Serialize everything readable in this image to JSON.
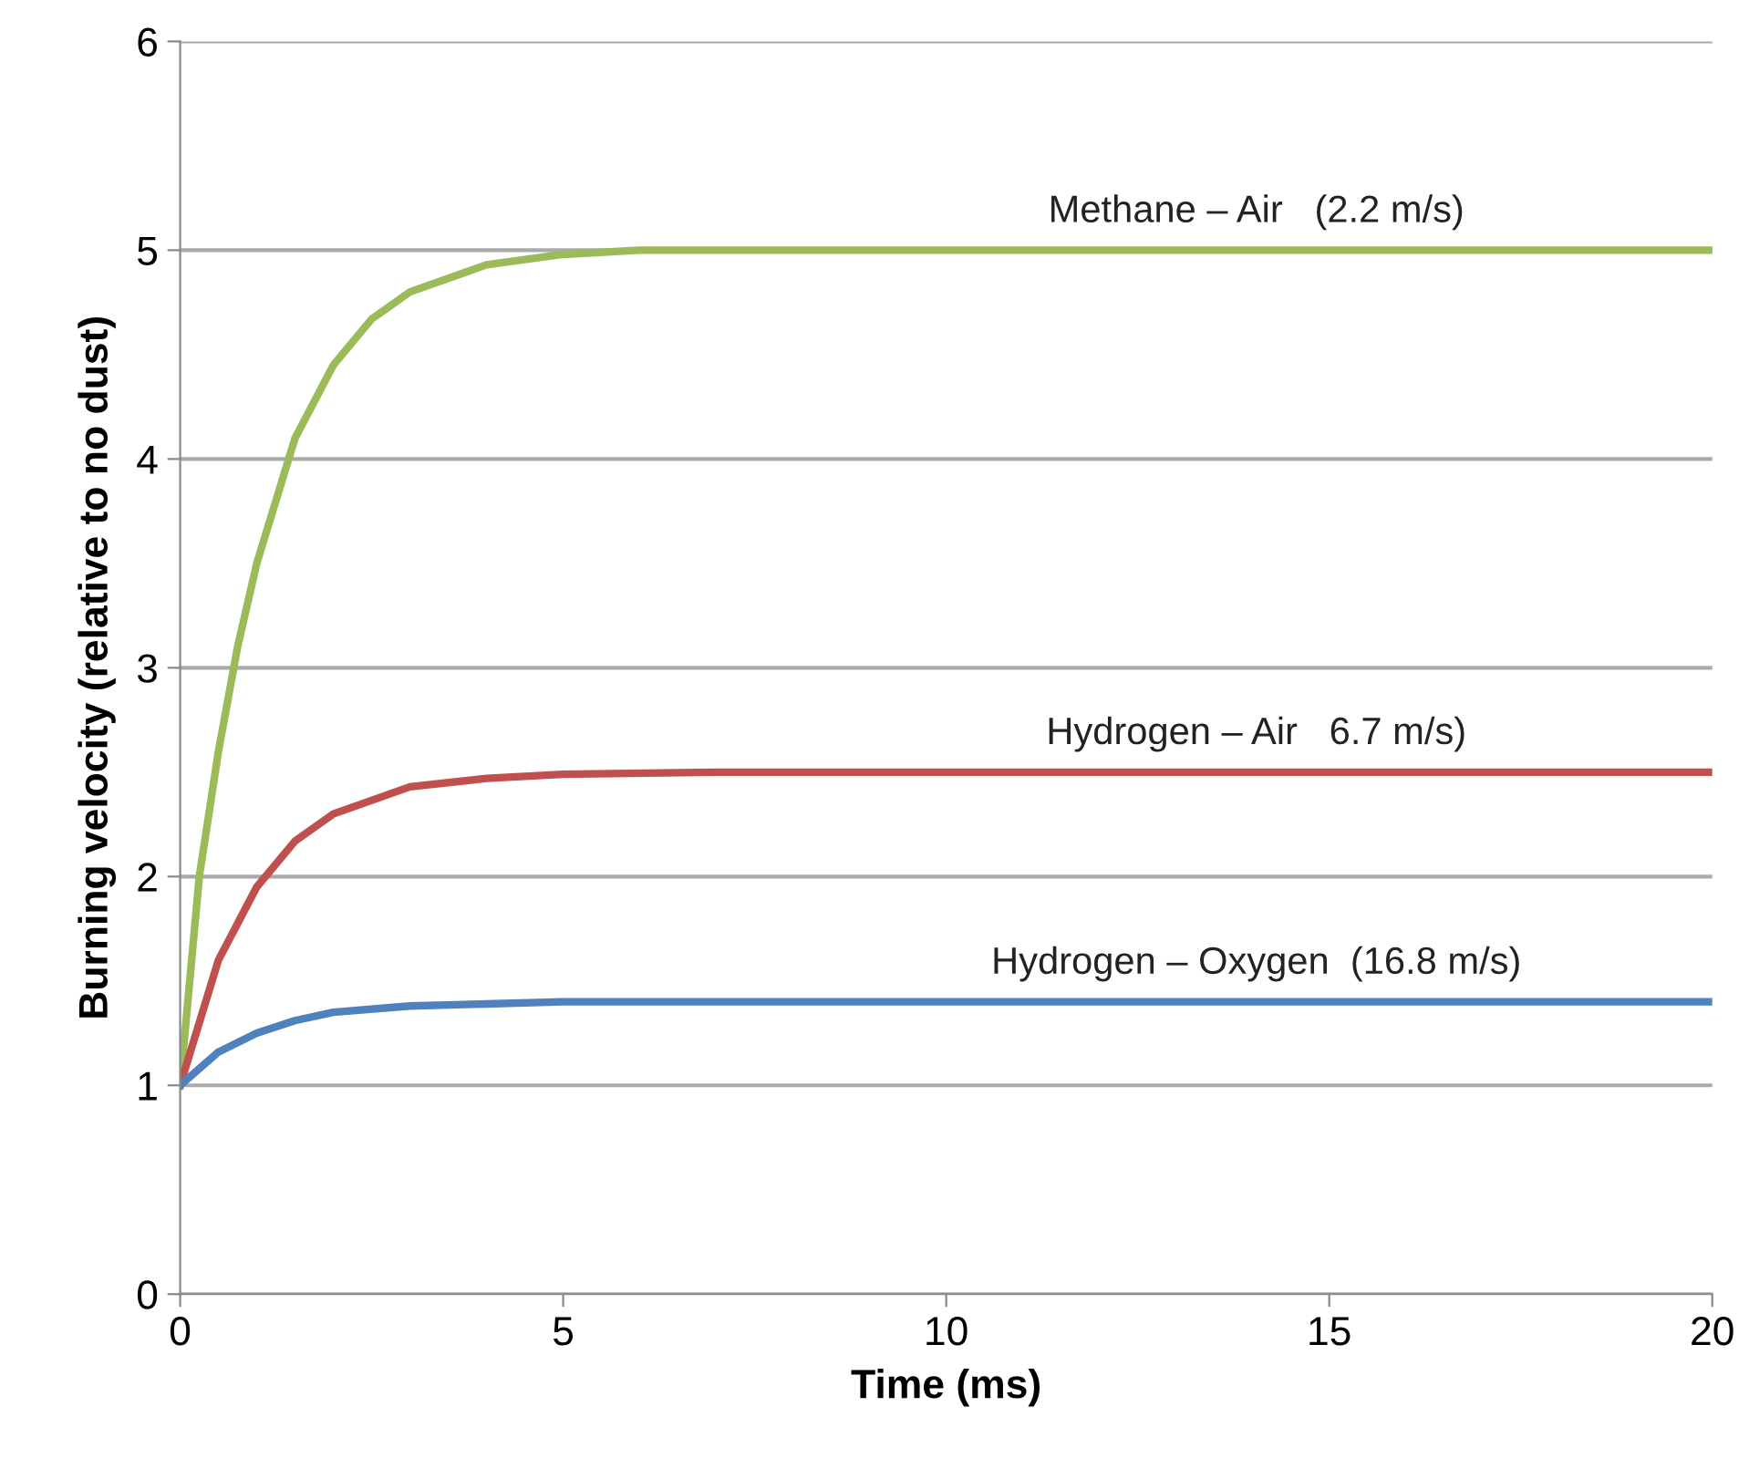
{
  "chart_data": {
    "type": "line",
    "xlabel": "Time (ms)",
    "ylabel": "Burning velocity (relative to no dust)",
    "xlim": [
      0,
      20
    ],
    "xticks": [
      0,
      5,
      10,
      15,
      20
    ],
    "ylim": [
      0,
      6
    ],
    "yticks": [
      0,
      1,
      2,
      3,
      4,
      5,
      6
    ],
    "grid": "y",
    "legend": false,
    "marker": "none",
    "line_style": "solid",
    "series": [
      {
        "name": "Methane – Air   (2.2 m/s)",
        "color": "#9bbb59",
        "x": [
          0,
          0.25,
          0.5,
          0.75,
          1,
          1.5,
          2,
          2.5,
          3,
          4,
          5,
          6,
          8,
          20
        ],
        "values": [
          1,
          2.0,
          2.6,
          3.1,
          3.5,
          4.1,
          4.45,
          4.67,
          4.8,
          4.93,
          4.98,
          5.0,
          5.0,
          5.0
        ]
      },
      {
        "name": "Hydrogen – Air   6.7 m/s)",
        "color": "#c0504d",
        "x": [
          0,
          0.5,
          1,
          1.5,
          2,
          3,
          4,
          5,
          7,
          20
        ],
        "values": [
          1,
          1.6,
          1.95,
          2.17,
          2.3,
          2.43,
          2.47,
          2.49,
          2.5,
          2.5
        ]
      },
      {
        "name": "Hydrogen – Oxygen  (16.8 m/s)",
        "color": "#4f81bd",
        "x": [
          0,
          0.5,
          1,
          1.5,
          2,
          3,
          4,
          5,
          20
        ],
        "values": [
          1,
          1.16,
          1.25,
          1.31,
          1.35,
          1.38,
          1.39,
          1.4,
          1.4
        ]
      }
    ]
  }
}
